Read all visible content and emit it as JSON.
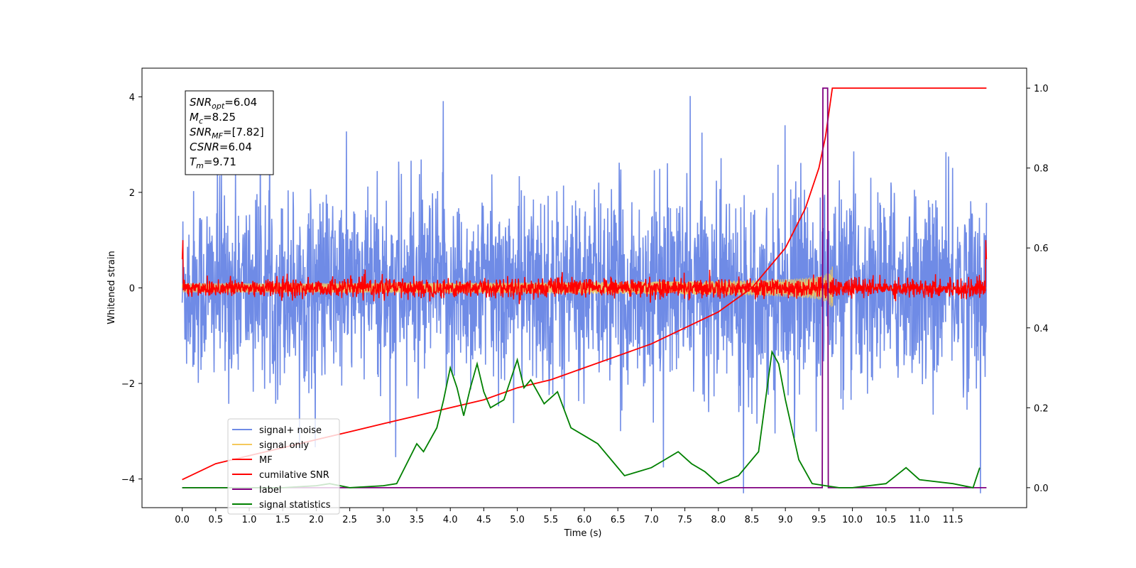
{
  "chart_data": {
    "type": "line",
    "xlabel": "Time (s)",
    "ylabel": "Whitened strain",
    "xlim": [
      -0.6,
      12.6
    ],
    "ylim": [
      -4.6,
      4.6
    ],
    "y2lim": [
      -0.05,
      1.05
    ],
    "x_ticks": [
      "0.0",
      "0.5",
      "1.0",
      "1.5",
      "2.0",
      "2.5",
      "3.0",
      "3.5",
      "4.0",
      "4.5",
      "5.0",
      "5.5",
      "6.0",
      "6.5",
      "7.0",
      "7.5",
      "8.0",
      "8.5",
      "9.0",
      "9.5",
      "10.0",
      "10.5",
      "11.0",
      "11.5"
    ],
    "y_ticks": [
      "-4",
      "-2",
      "0",
      "2",
      "4"
    ],
    "y2_ticks": [
      "0.0",
      "0.2",
      "0.4",
      "0.6",
      "0.8",
      "1.0"
    ],
    "legend_position": "lower-left",
    "annotation": [
      {
        "base": "SNR",
        "sub": "opt",
        "value": "=6.04"
      },
      {
        "base": "M",
        "sub": "c",
        "value": "=8.25"
      },
      {
        "base": "SNR",
        "sub": "MF",
        "value": "=[7.82]"
      },
      {
        "base": "CSNR",
        "sub": "",
        "value": "=6.04"
      },
      {
        "base": "T",
        "sub": "m",
        "value": "=9.71"
      }
    ],
    "series": [
      {
        "name": "signal+ noise",
        "color": "#6f8be6",
        "axis": "left",
        "note_style": "noisy-band",
        "amplitude_std": 1.0
      },
      {
        "name": "signal only",
        "color": "#f5c95c",
        "axis": "left",
        "chirp_end": 9.71,
        "peak": 0.45
      },
      {
        "name": "MF",
        "color": "#ff0000",
        "axis": "left",
        "amplitude_std": 0.1
      },
      {
        "name": "cumilative SNR",
        "color": "#ff0000",
        "axis": "right",
        "x": [
          0.0,
          0.5,
          1.0,
          1.5,
          2.0,
          2.5,
          3.0,
          3.5,
          4.0,
          4.5,
          5.0,
          5.5,
          6.0,
          6.5,
          7.0,
          7.5,
          8.0,
          8.5,
          9.0,
          9.3,
          9.5,
          9.6,
          9.7,
          10.0,
          11.0,
          12.0
        ],
        "values": [
          0.02,
          0.06,
          0.08,
          0.1,
          0.12,
          0.14,
          0.16,
          0.18,
          0.2,
          0.22,
          0.25,
          0.27,
          0.3,
          0.33,
          0.36,
          0.4,
          0.44,
          0.5,
          0.6,
          0.7,
          0.8,
          0.88,
          1.0,
          1.0,
          1.0,
          1.0
        ]
      },
      {
        "name": "label",
        "color": "#800080",
        "axis": "right",
        "x": [
          0.0,
          9.55,
          9.56,
          9.63,
          9.64,
          12.0
        ],
        "values": [
          0.0,
          0.0,
          1.0,
          1.0,
          0.0,
          0.0
        ]
      },
      {
        "name": "signal statistics",
        "color": "#008000",
        "axis": "right",
        "x": [
          0.0,
          0.5,
          1.0,
          1.5,
          2.0,
          2.2,
          2.5,
          3.0,
          3.2,
          3.5,
          3.6,
          3.8,
          3.9,
          4.0,
          4.1,
          4.2,
          4.3,
          4.4,
          4.5,
          4.6,
          4.8,
          5.0,
          5.1,
          5.2,
          5.4,
          5.6,
          5.8,
          6.0,
          6.2,
          6.4,
          6.6,
          6.8,
          7.0,
          7.2,
          7.4,
          7.6,
          7.8,
          8.0,
          8.3,
          8.6,
          8.8,
          8.9,
          9.0,
          9.2,
          9.4,
          9.6,
          9.8,
          10.0,
          10.5,
          10.8,
          11.0,
          11.5,
          11.8,
          11.9
        ],
        "values": [
          0.0,
          0.0,
          0.0,
          0.0,
          0.005,
          0.01,
          0.0,
          0.005,
          0.01,
          0.11,
          0.09,
          0.15,
          0.22,
          0.3,
          0.25,
          0.18,
          0.25,
          0.31,
          0.24,
          0.2,
          0.22,
          0.32,
          0.25,
          0.27,
          0.21,
          0.24,
          0.15,
          0.13,
          0.11,
          0.07,
          0.03,
          0.04,
          0.05,
          0.07,
          0.09,
          0.06,
          0.04,
          0.01,
          0.03,
          0.09,
          0.34,
          0.31,
          0.22,
          0.07,
          0.01,
          0.005,
          0.0,
          0.0,
          0.01,
          0.05,
          0.02,
          0.01,
          0.0,
          0.05
        ]
      }
    ]
  }
}
